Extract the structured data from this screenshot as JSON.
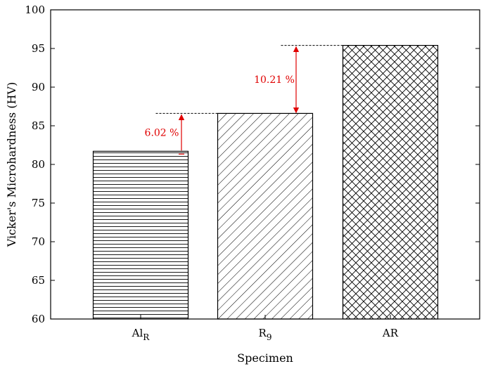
{
  "chart_data": {
    "type": "bar",
    "title": "",
    "xlabel": "Specimen",
    "ylabel": "Vicker's Microhardness (HV)",
    "ylim": [
      60,
      100
    ],
    "yticks": [
      60,
      65,
      70,
      75,
      80,
      85,
      90,
      95,
      100
    ],
    "categories": [
      {
        "base": "Al",
        "sub": "R"
      },
      {
        "base": "R",
        "sub": "9"
      },
      {
        "base": "AR",
        "sub": ""
      }
    ],
    "values": [
      81.7,
      86.6,
      95.4
    ],
    "patterns": [
      "horizontal-lines",
      "diagonal-lines",
      "crosshatch"
    ],
    "grid": false,
    "legend": "none",
    "annotations": [
      {
        "text": "6.02 %",
        "from_value": 81.7,
        "to_value": 86.6,
        "from_bar": 0,
        "to_bar": 1
      },
      {
        "text": "10.21 %",
        "from_value": 86.6,
        "to_value": 95.4,
        "from_bar": 1,
        "to_bar": 2
      }
    ],
    "annotation_color": "#e00000"
  }
}
